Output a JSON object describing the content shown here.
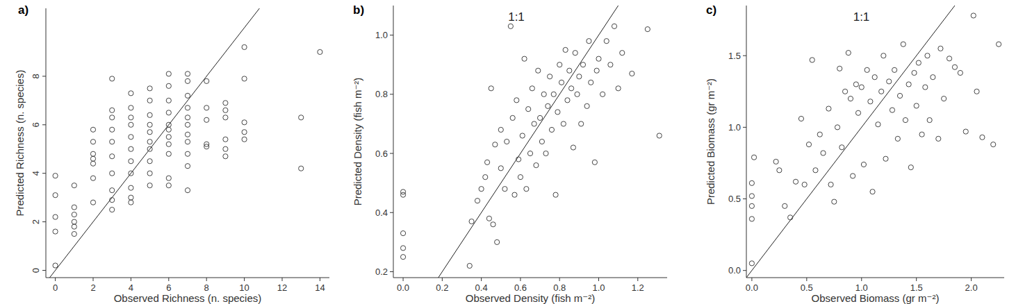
{
  "chart_data": [
    {
      "type": "scatter",
      "title": "a)",
      "x_label": "Observed Richness (n. species)",
      "y_label": "Predicted Richness (n. species)",
      "color": "#444444",
      "marker": "circle",
      "xlim": [
        -0.5,
        14.5
      ],
      "ylim": [
        -0.3,
        10.8
      ],
      "xticks": [
        0,
        2,
        4,
        6,
        8,
        10,
        12,
        14
      ],
      "yticks": [
        0,
        2,
        4,
        6,
        8
      ],
      "x": [
        0,
        0,
        0,
        0,
        0,
        1,
        1,
        1,
        1,
        1,
        1,
        2,
        2,
        2,
        2,
        2,
        2,
        2,
        3,
        3,
        3,
        3,
        3,
        3,
        3,
        3,
        3,
        3,
        4,
        4,
        4,
        4,
        4,
        4,
        4,
        4,
        4,
        4,
        4,
        5,
        5,
        5,
        5,
        5,
        5,
        5,
        5,
        5,
        5,
        6,
        6,
        6,
        6,
        6,
        6,
        6,
        6,
        6,
        6,
        6,
        7,
        7,
        7,
        7,
        7,
        7,
        7,
        7,
        7,
        7,
        7,
        8,
        8,
        8,
        8,
        8,
        9,
        9,
        9,
        9,
        9,
        9,
        10,
        10,
        10,
        10,
        10,
        13,
        13,
        14
      ],
      "values": [
        0.2,
        1.6,
        2.2,
        3.1,
        3.9,
        1.5,
        1.8,
        2.0,
        2.3,
        2.6,
        3.5,
        2.8,
        3.8,
        4.4,
        4.6,
        4.8,
        5.3,
        5.8,
        2.5,
        2.9,
        3.3,
        4.0,
        4.7,
        5.3,
        5.8,
        6.3,
        6.6,
        7.9,
        2.8,
        3.0,
        3.4,
        4.0,
        4.5,
        5.0,
        5.5,
        6.0,
        6.3,
        6.7,
        7.3,
        3.5,
        4.0,
        4.5,
        5.0,
        5.3,
        5.7,
        6.0,
        6.4,
        7.0,
        7.5,
        3.5,
        3.8,
        4.8,
        5.2,
        5.5,
        5.8,
        6.0,
        6.5,
        7.0,
        7.6,
        8.1,
        3.3,
        4.3,
        4.8,
        5.3,
        5.6,
        6.0,
        6.3,
        6.7,
        7.2,
        7.8,
        8.1,
        5.1,
        5.2,
        6.2,
        6.7,
        7.8,
        4.7,
        5.0,
        5.4,
        6.3,
        6.6,
        6.9,
        5.4,
        5.7,
        6.1,
        7.9,
        9.2,
        4.2,
        6.3,
        9.0
      ]
    },
    {
      "type": "scatter",
      "title": "b)",
      "annotation": "1:1",
      "x_label": "Observed Density (fish m⁻²)",
      "y_label": "Predicted Density (fish m⁻²)",
      "color": "#444444",
      "marker": "circle",
      "xlim": [
        -0.05,
        1.35
      ],
      "ylim": [
        0.18,
        1.1
      ],
      "xticks": [
        {
          "value": 0,
          "label": "0.0"
        },
        0.2,
        0.4,
        0.6,
        0.8,
        {
          "value": 1,
          "label": "1.0"
        },
        1.2
      ],
      "yticks": [
        0.2,
        0.4,
        0.6,
        0.8,
        {
          "value": 1,
          "label": "1.0"
        }
      ],
      "x": [
        0,
        0,
        0,
        0,
        0,
        0.34,
        0.35,
        0.38,
        0.4,
        0.42,
        0.43,
        0.44,
        0.45,
        0.46,
        0.47,
        0.48,
        0.5,
        0.5,
        0.52,
        0.53,
        0.55,
        0.56,
        0.57,
        0.58,
        0.59,
        0.6,
        0.61,
        0.62,
        0.63,
        0.64,
        0.65,
        0.66,
        0.67,
        0.68,
        0.69,
        0.7,
        0.71,
        0.72,
        0.73,
        0.74,
        0.75,
        0.76,
        0.77,
        0.78,
        0.79,
        0.8,
        0.81,
        0.82,
        0.83,
        0.84,
        0.85,
        0.86,
        0.87,
        0.88,
        0.89,
        0.9,
        0.91,
        0.92,
        0.94,
        0.95,
        0.96,
        0.98,
        0.99,
        1.0,
        1.02,
        1.04,
        1.06,
        1.08,
        1.1,
        1.12,
        1.17,
        1.25,
        1.31
      ],
      "values": [
        0.25,
        0.28,
        0.33,
        0.46,
        0.47,
        0.22,
        0.37,
        0.44,
        0.48,
        0.52,
        0.57,
        0.38,
        0.82,
        0.36,
        0.63,
        0.3,
        0.55,
        0.68,
        0.48,
        0.64,
        1.03,
        0.72,
        0.46,
        0.78,
        0.58,
        0.52,
        0.66,
        0.92,
        0.48,
        0.75,
        0.6,
        0.82,
        0.7,
        0.56,
        0.88,
        0.72,
        0.64,
        0.8,
        0.6,
        0.76,
        0.86,
        0.68,
        0.8,
        0.46,
        0.74,
        0.9,
        0.84,
        0.7,
        0.95,
        0.78,
        0.88,
        0.82,
        0.62,
        0.94,
        0.8,
        0.86,
        0.7,
        0.9,
        0.76,
        0.98,
        0.84,
        0.57,
        0.88,
        0.92,
        0.8,
        0.98,
        0.9,
        1.03,
        0.82,
        0.94,
        0.87,
        1.02,
        0.66
      ]
    },
    {
      "type": "scatter",
      "title": "c)",
      "annotation": "1:1",
      "x_label": "Observed Biomass (gr m⁻²)",
      "y_label": "Predicted Biomass (gr m⁻²)",
      "color": "#444444",
      "marker": "circle",
      "xlim": [
        -0.05,
        2.3
      ],
      "ylim": [
        -0.05,
        1.85
      ],
      "xticks": [
        {
          "value": 0,
          "label": "0.0"
        },
        0.5,
        {
          "value": 1,
          "label": "1.0"
        },
        1.5,
        {
          "value": 2,
          "label": "2.0"
        }
      ],
      "yticks": [
        {
          "value": 0,
          "label": "0.0"
        },
        0.5,
        {
          "value": 1,
          "label": "1.0"
        },
        1.5
      ],
      "x": [
        0,
        0,
        0,
        0,
        0,
        0.02,
        0.22,
        0.25,
        0.3,
        0.35,
        0.4,
        0.45,
        0.48,
        0.52,
        0.55,
        0.58,
        0.62,
        0.65,
        0.7,
        0.72,
        0.75,
        0.78,
        0.8,
        0.82,
        0.85,
        0.88,
        0.9,
        0.92,
        0.95,
        0.97,
        1.0,
        1.02,
        1.05,
        1.08,
        1.1,
        1.12,
        1.15,
        1.18,
        1.2,
        1.22,
        1.25,
        1.28,
        1.3,
        1.33,
        1.35,
        1.38,
        1.4,
        1.43,
        1.45,
        1.48,
        1.5,
        1.52,
        1.55,
        1.58,
        1.6,
        1.62,
        1.65,
        1.7,
        1.72,
        1.75,
        1.8,
        1.85,
        1.9,
        1.95,
        2.02,
        2.05,
        2.1,
        2.2,
        2.25
      ],
      "values": [
        0.05,
        0.36,
        0.45,
        0.52,
        0.61,
        0.79,
        0.76,
        0.7,
        0.45,
        0.37,
        0.62,
        1.06,
        0.6,
        0.88,
        1.47,
        0.7,
        0.95,
        0.82,
        1.13,
        0.6,
        0.48,
        1.0,
        1.41,
        0.86,
        1.25,
        1.52,
        1.2,
        0.66,
        1.3,
        1.1,
        1.28,
        0.74,
        1.4,
        1.18,
        0.55,
        1.35,
        1.02,
        1.25,
        1.5,
        0.78,
        1.32,
        1.12,
        1.4,
        0.92,
        1.22,
        1.58,
        1.05,
        1.3,
        0.72,
        1.38,
        1.15,
        1.45,
        0.95,
        1.28,
        1.5,
        1.05,
        1.35,
        0.92,
        1.55,
        1.2,
        1.48,
        1.42,
        1.38,
        0.97,
        1.78,
        1.25,
        0.93,
        0.88,
        1.58
      ]
    }
  ]
}
